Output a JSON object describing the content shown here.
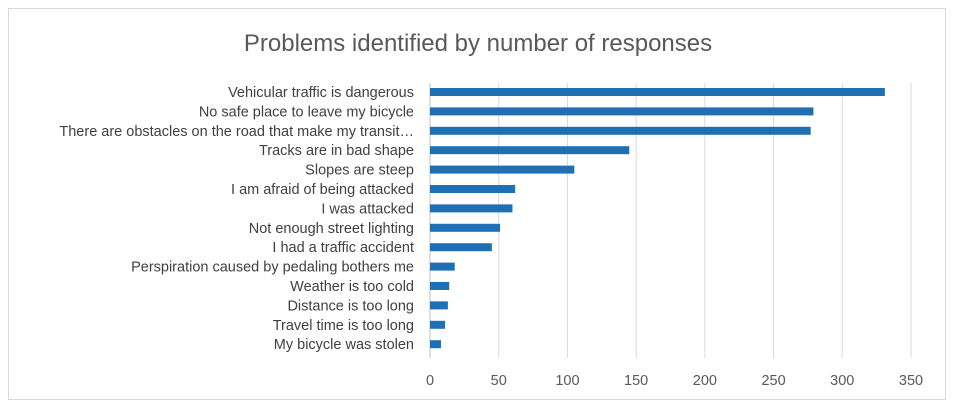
{
  "chart_data": {
    "type": "bar",
    "orientation": "horizontal",
    "title": "Problems identified by number of responses",
    "xlabel": "",
    "ylabel": "",
    "xlim": [
      0,
      350
    ],
    "x_ticks": [
      0,
      50,
      100,
      150,
      200,
      250,
      300,
      350
    ],
    "grid": true,
    "legend": "none",
    "bar_color": "#1f6fb5",
    "categories": [
      "Vehicular traffic is dangerous",
      "No safe place to leave my bicycle",
      "There are obstacles on the road that make my transit…",
      "Tracks are in bad shape",
      "Slopes are steep",
      "I am afraid of being attacked",
      "I was attacked",
      "Not enough street lighting",
      "I had a traffic accident",
      "Perspiration caused by pedaling bothers me",
      "Weather is too cold",
      "Distance is too long",
      "Travel time is too long",
      "My bicycle was stolen"
    ],
    "values": [
      331,
      279,
      277,
      145,
      105,
      62,
      60,
      51,
      45,
      18,
      14,
      13,
      11,
      8
    ]
  }
}
